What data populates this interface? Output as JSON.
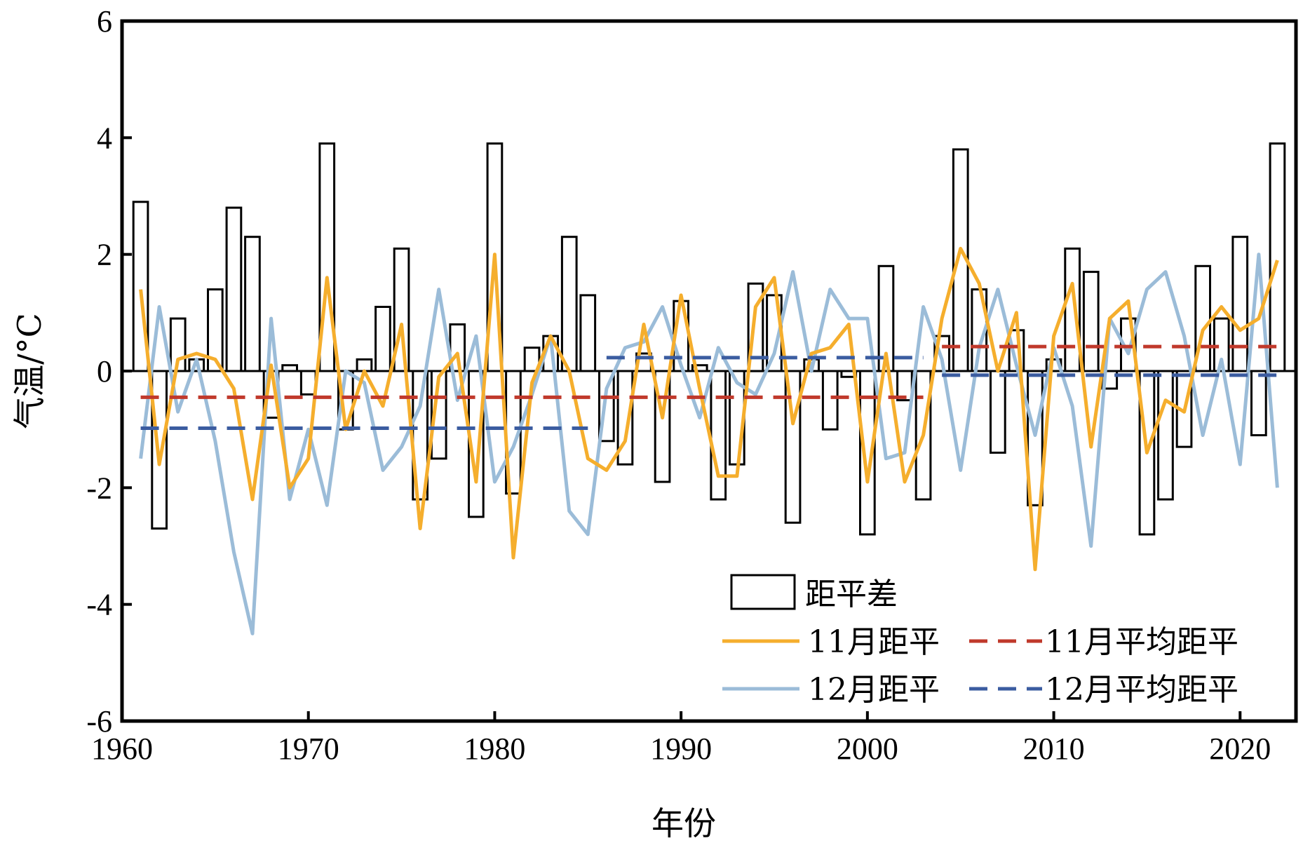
{
  "chart_data": {
    "type": "bar+line",
    "title": "",
    "xlabel": "年份",
    "ylabel": "气温/°C",
    "xlim": [
      1960,
      2023
    ],
    "ylim": [
      -6,
      6
    ],
    "xticks": [
      1960,
      1970,
      1980,
      1990,
      2000,
      2010,
      2020
    ],
    "xtick_labels": [
      "1960",
      "1970",
      "1980",
      "1990",
      "2000",
      "2010",
      "2020"
    ],
    "yticks": [
      -6,
      -4,
      -2,
      0,
      2,
      4,
      6
    ],
    "ytick_labels": [
      "-6",
      "-4",
      "-2",
      "0",
      "2",
      "4",
      "6"
    ],
    "grid": false,
    "legend_position": "bottom-right",
    "x": [
      1961,
      1962,
      1963,
      1964,
      1965,
      1966,
      1967,
      1968,
      1969,
      1970,
      1971,
      1972,
      1973,
      1974,
      1975,
      1976,
      1977,
      1978,
      1979,
      1980,
      1981,
      1982,
      1983,
      1984,
      1985,
      1986,
      1987,
      1988,
      1989,
      1990,
      1991,
      1992,
      1993,
      1994,
      1995,
      1996,
      1997,
      1998,
      1999,
      2000,
      2001,
      2002,
      2003,
      2004,
      2005,
      2006,
      2007,
      2008,
      2009,
      2010,
      2011,
      2012,
      2013,
      2014,
      2015,
      2016,
      2017,
      2018,
      2019,
      2020,
      2021,
      2022
    ],
    "series": [
      {
        "name": "距平差",
        "kind": "bar",
        "color": "#000000",
        "values": [
          2.9,
          -2.7,
          0.9,
          0.2,
          1.4,
          2.8,
          2.3,
          -0.8,
          0.1,
          -0.4,
          3.9,
          -1.0,
          0.2,
          1.1,
          2.1,
          -2.2,
          -1.5,
          0.8,
          -2.5,
          3.9,
          -2.1,
          0.4,
          0.6,
          2.3,
          1.3,
          -1.2,
          -1.6,
          0.3,
          -1.9,
          1.2,
          0.1,
          -2.2,
          -1.6,
          1.5,
          1.3,
          -2.6,
          0.2,
          -1.0,
          -0.1,
          -2.8,
          1.8,
          -0.5,
          -2.2,
          0.6,
          3.8,
          1.4,
          -1.4,
          0.7,
          -2.3,
          0.2,
          2.1,
          1.7,
          -0.3,
          0.9,
          -2.8,
          -2.2,
          -1.3,
          1.8,
          0.9,
          2.3,
          -1.1,
          3.9
        ]
      },
      {
        "name": "11月距平",
        "kind": "line",
        "color": "#F5AE2D",
        "values": [
          1.4,
          -1.6,
          0.2,
          0.3,
          0.2,
          -0.3,
          -2.2,
          0.1,
          -2.0,
          -1.5,
          1.6,
          -1.0,
          0.0,
          -0.6,
          0.8,
          -2.7,
          -0.1,
          0.3,
          -1.9,
          2.0,
          -3.2,
          -0.2,
          0.6,
          0.0,
          -1.5,
          -1.7,
          -1.2,
          0.8,
          -0.8,
          1.3,
          -0.3,
          -1.8,
          -1.8,
          1.1,
          1.6,
          -0.9,
          0.3,
          0.4,
          0.8,
          -1.9,
          0.3,
          -1.9,
          -1.1,
          0.9,
          2.1,
          1.5,
          0.0,
          1.0,
          -3.4,
          0.6,
          1.5,
          -1.3,
          0.9,
          1.2,
          -1.4,
          -0.5,
          -0.7,
          0.7,
          1.1,
          0.7,
          0.9,
          1.9
        ]
      },
      {
        "name": "12月距平",
        "kind": "line",
        "color": "#9BBCD8",
        "values": [
          -1.5,
          1.1,
          -0.7,
          0.2,
          -1.2,
          -3.1,
          -4.5,
          0.9,
          -2.2,
          -1.0,
          -2.3,
          0.0,
          -0.2,
          -1.7,
          -1.3,
          -0.6,
          1.4,
          -0.5,
          0.6,
          -1.9,
          -1.3,
          -0.4,
          0.6,
          -2.4,
          -2.8,
          -0.3,
          0.4,
          0.5,
          1.1,
          0.1,
          -0.8,
          0.4,
          -0.2,
          -0.4,
          0.3,
          1.7,
          0.0,
          1.4,
          0.9,
          0.9,
          -1.5,
          -1.4,
          1.1,
          0.2,
          -1.7,
          0.4,
          1.4,
          0.1,
          -1.1,
          0.4,
          -0.6,
          -3.0,
          0.9,
          0.3,
          1.4,
          1.7,
          0.6,
          -1.1,
          0.2,
          -1.6,
          2.0,
          -2.0
        ]
      },
      {
        "name": "11月平均距平",
        "kind": "step-dashed",
        "color": "#C0392B",
        "segments": [
          {
            "x_start": 1961,
            "x_end": 2003,
            "value": -0.45
          },
          {
            "x_start": 2004,
            "x_end": 2022,
            "value": 0.42
          }
        ]
      },
      {
        "name": "12月平均距平",
        "kind": "step-dashed",
        "color": "#3B5CA0",
        "segments": [
          {
            "x_start": 1961,
            "x_end": 1985,
            "value": -0.98
          },
          {
            "x_start": 1986,
            "x_end": 2003,
            "value": 0.23
          },
          {
            "x_start": 2004,
            "x_end": 2022,
            "value": -0.07
          }
        ]
      }
    ]
  }
}
